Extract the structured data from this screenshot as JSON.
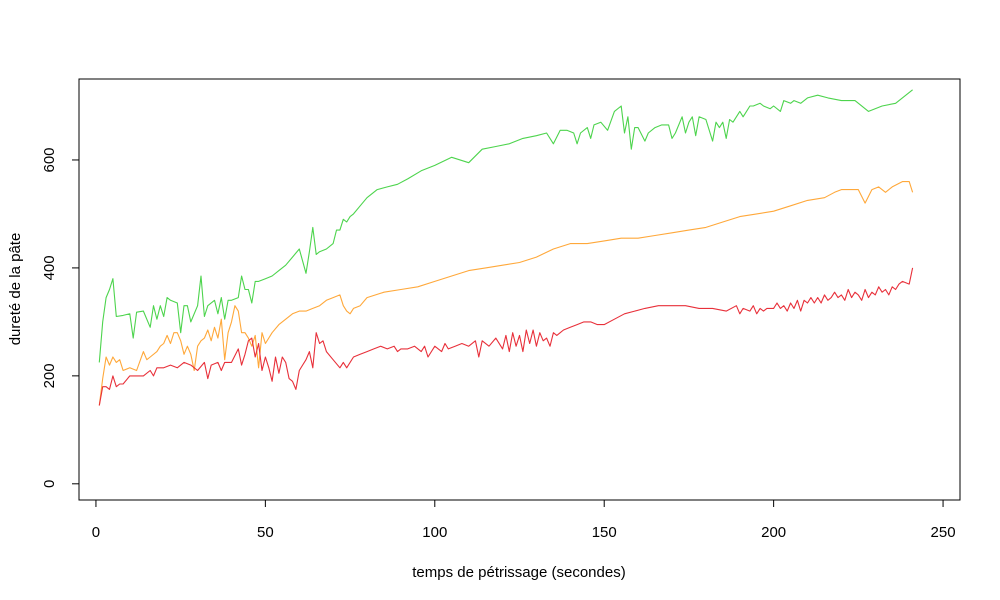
{
  "chart_data": {
    "type": "line",
    "title": "",
    "xlabel": "temps de pétrissage (secondes)",
    "ylabel": "dureté de la pâte",
    "xlim": [
      -5,
      255
    ],
    "ylim": [
      -30,
      750
    ],
    "x_ticks": [
      0,
      50,
      100,
      150,
      200,
      250
    ],
    "y_ticks": [
      0,
      200,
      400,
      600
    ],
    "x_tick_labels": [
      "0",
      "50",
      "100",
      "150",
      "200",
      "250"
    ],
    "y_tick_labels": [
      "0",
      "200",
      "400",
      "600"
    ],
    "grid": false,
    "legend": "none",
    "series": [
      {
        "color": "#4dd44d",
        "x": [
          1,
          2,
          3,
          4,
          5,
          6,
          8,
          10,
          11,
          12,
          14,
          16,
          17,
          18,
          19,
          20,
          21,
          22,
          24,
          25,
          26,
          27,
          28,
          30,
          31,
          32,
          33,
          35,
          36,
          37,
          38,
          39,
          40,
          42,
          43,
          44,
          45,
          46,
          47,
          48,
          50,
          52,
          54,
          56,
          58,
          60,
          62,
          63,
          64,
          65,
          66,
          68,
          70,
          71,
          72,
          73,
          74,
          75,
          76,
          78,
          80,
          83,
          86,
          89,
          92,
          96,
          100,
          105,
          110,
          114,
          118,
          122,
          126,
          130,
          133,
          135,
          137,
          139,
          141,
          142,
          143,
          145,
          146,
          147,
          149,
          151,
          153,
          155,
          156,
          157,
          158,
          159,
          160,
          162,
          163,
          165,
          167,
          169,
          170,
          171,
          173,
          174,
          175,
          176,
          177,
          178,
          180,
          182,
          183,
          184,
          185,
          186,
          187,
          188,
          190,
          191,
          192,
          193,
          194,
          196,
          197,
          199,
          200,
          202,
          203,
          205,
          206,
          208,
          210,
          213,
          216,
          220,
          224,
          228,
          232,
          236,
          241
        ],
        "y": [
          225,
          300,
          345,
          360,
          380,
          310,
          312,
          315,
          270,
          318,
          320,
          290,
          330,
          305,
          330,
          310,
          345,
          340,
          335,
          280,
          330,
          330,
          300,
          330,
          385,
          310,
          330,
          340,
          315,
          345,
          305,
          340,
          340,
          345,
          385,
          360,
          360,
          335,
          375,
          375,
          380,
          385,
          395,
          405,
          420,
          435,
          390,
          430,
          475,
          425,
          430,
          435,
          445,
          470,
          470,
          490,
          485,
          495,
          500,
          515,
          530,
          545,
          550,
          555,
          565,
          580,
          590,
          605,
          595,
          620,
          625,
          630,
          640,
          645,
          650,
          630,
          655,
          655,
          650,
          630,
          650,
          660,
          640,
          665,
          670,
          655,
          690,
          700,
          650,
          680,
          620,
          660,
          660,
          635,
          650,
          660,
          665,
          665,
          640,
          650,
          680,
          650,
          670,
          680,
          645,
          680,
          675,
          635,
          670,
          660,
          670,
          640,
          675,
          670,
          690,
          680,
          690,
          700,
          700,
          705,
          700,
          695,
          700,
          690,
          710,
          705,
          710,
          705,
          715,
          720,
          715,
          710,
          710,
          690,
          700,
          705,
          730
        ]
      },
      {
        "color": "#ffa83a",
        "x": [
          1,
          2,
          3,
          4,
          5,
          6,
          7,
          8,
          10,
          12,
          14,
          15,
          16,
          18,
          19,
          20,
          21,
          22,
          23,
          24,
          25,
          26,
          27,
          28,
          29,
          30,
          31,
          32,
          33,
          34,
          35,
          36,
          37,
          38,
          39,
          40,
          41,
          42,
          43,
          44,
          45,
          46,
          47,
          48,
          49,
          50,
          52,
          54,
          56,
          58,
          60,
          62,
          64,
          66,
          68,
          70,
          72,
          73,
          74,
          75,
          76,
          78,
          80,
          85,
          90,
          95,
          100,
          105,
          110,
          115,
          120,
          125,
          130,
          135,
          140,
          145,
          150,
          155,
          160,
          165,
          170,
          175,
          180,
          185,
          190,
          195,
          200,
          205,
          210,
          215,
          218,
          220,
          225,
          227,
          229,
          231,
          233,
          235,
          238,
          240,
          241
        ],
        "y": [
          145,
          195,
          235,
          220,
          235,
          225,
          230,
          210,
          215,
          210,
          245,
          230,
          235,
          245,
          255,
          260,
          275,
          260,
          280,
          280,
          265,
          240,
          255,
          240,
          210,
          255,
          265,
          270,
          285,
          265,
          290,
          270,
          305,
          230,
          280,
          300,
          330,
          320,
          280,
          280,
          270,
          255,
          275,
          215,
          280,
          260,
          280,
          295,
          305,
          315,
          320,
          320,
          325,
          330,
          340,
          345,
          350,
          330,
          320,
          315,
          325,
          330,
          345,
          355,
          360,
          365,
          375,
          385,
          395,
          400,
          405,
          410,
          420,
          435,
          445,
          445,
          450,
          455,
          455,
          460,
          465,
          470,
          475,
          485,
          495,
          500,
          505,
          515,
          525,
          530,
          540,
          545,
          545,
          520,
          545,
          550,
          540,
          550,
          560,
          560,
          540
        ]
      },
      {
        "color": "#e8303a",
        "x": [
          1,
          2,
          3,
          4,
          5,
          6,
          7,
          8,
          10,
          12,
          14,
          16,
          17,
          18,
          20,
          22,
          24,
          26,
          28,
          30,
          32,
          33,
          34,
          36,
          37,
          38,
          40,
          42,
          43,
          44,
          45,
          46,
          47,
          48,
          49,
          50,
          51,
          52,
          53,
          54,
          55,
          56,
          57,
          58,
          59,
          60,
          61,
          62,
          63,
          64,
          65,
          66,
          67,
          68,
          70,
          72,
          73,
          74,
          76,
          78,
          80,
          82,
          84,
          86,
          88,
          89,
          90,
          92,
          94,
          96,
          97,
          98,
          100,
          102,
          103,
          104,
          106,
          108,
          110,
          112,
          113,
          114,
          116,
          118,
          120,
          121,
          122,
          123,
          124,
          125,
          126,
          127,
          128,
          129,
          130,
          131,
          132,
          133,
          134,
          135,
          136,
          137,
          138,
          140,
          142,
          144,
          146,
          148,
          150,
          153,
          156,
          159,
          162,
          166,
          170,
          174,
          178,
          182,
          186,
          189,
          190,
          191,
          193,
          194,
          195,
          196,
          197,
          198,
          200,
          201,
          202,
          203,
          204,
          205,
          206,
          207,
          208,
          209,
          210,
          211,
          212,
          213,
          214,
          215,
          216,
          217,
          218,
          219,
          220,
          221,
          222,
          223,
          224,
          225,
          226,
          227,
          228,
          229,
          230,
          231,
          232,
          233,
          234,
          235,
          236,
          237,
          238,
          240,
          241
        ],
        "y": [
          145,
          180,
          180,
          175,
          200,
          180,
          185,
          185,
          200,
          200,
          200,
          210,
          200,
          215,
          215,
          220,
          215,
          225,
          220,
          210,
          225,
          195,
          220,
          225,
          210,
          225,
          225,
          250,
          220,
          240,
          265,
          270,
          235,
          260,
          210,
          235,
          215,
          190,
          235,
          205,
          235,
          225,
          195,
          190,
          175,
          210,
          220,
          230,
          245,
          215,
          280,
          260,
          265,
          245,
          230,
          215,
          225,
          215,
          235,
          240,
          245,
          250,
          255,
          250,
          255,
          245,
          250,
          250,
          255,
          245,
          255,
          235,
          255,
          245,
          260,
          250,
          255,
          260,
          255,
          265,
          235,
          265,
          255,
          270,
          250,
          275,
          245,
          280,
          255,
          275,
          245,
          285,
          260,
          285,
          255,
          280,
          265,
          270,
          255,
          280,
          275,
          280,
          285,
          290,
          295,
          300,
          300,
          295,
          295,
          305,
          315,
          320,
          325,
          330,
          330,
          330,
          325,
          325,
          320,
          330,
          315,
          325,
          320,
          330,
          315,
          325,
          320,
          325,
          325,
          335,
          325,
          330,
          320,
          335,
          325,
          340,
          320,
          340,
          335,
          345,
          335,
          345,
          335,
          350,
          340,
          345,
          355,
          345,
          350,
          340,
          360,
          345,
          355,
          350,
          340,
          360,
          345,
          355,
          350,
          365,
          355,
          360,
          350,
          365,
          360,
          370,
          375,
          370,
          400
        ]
      }
    ]
  }
}
